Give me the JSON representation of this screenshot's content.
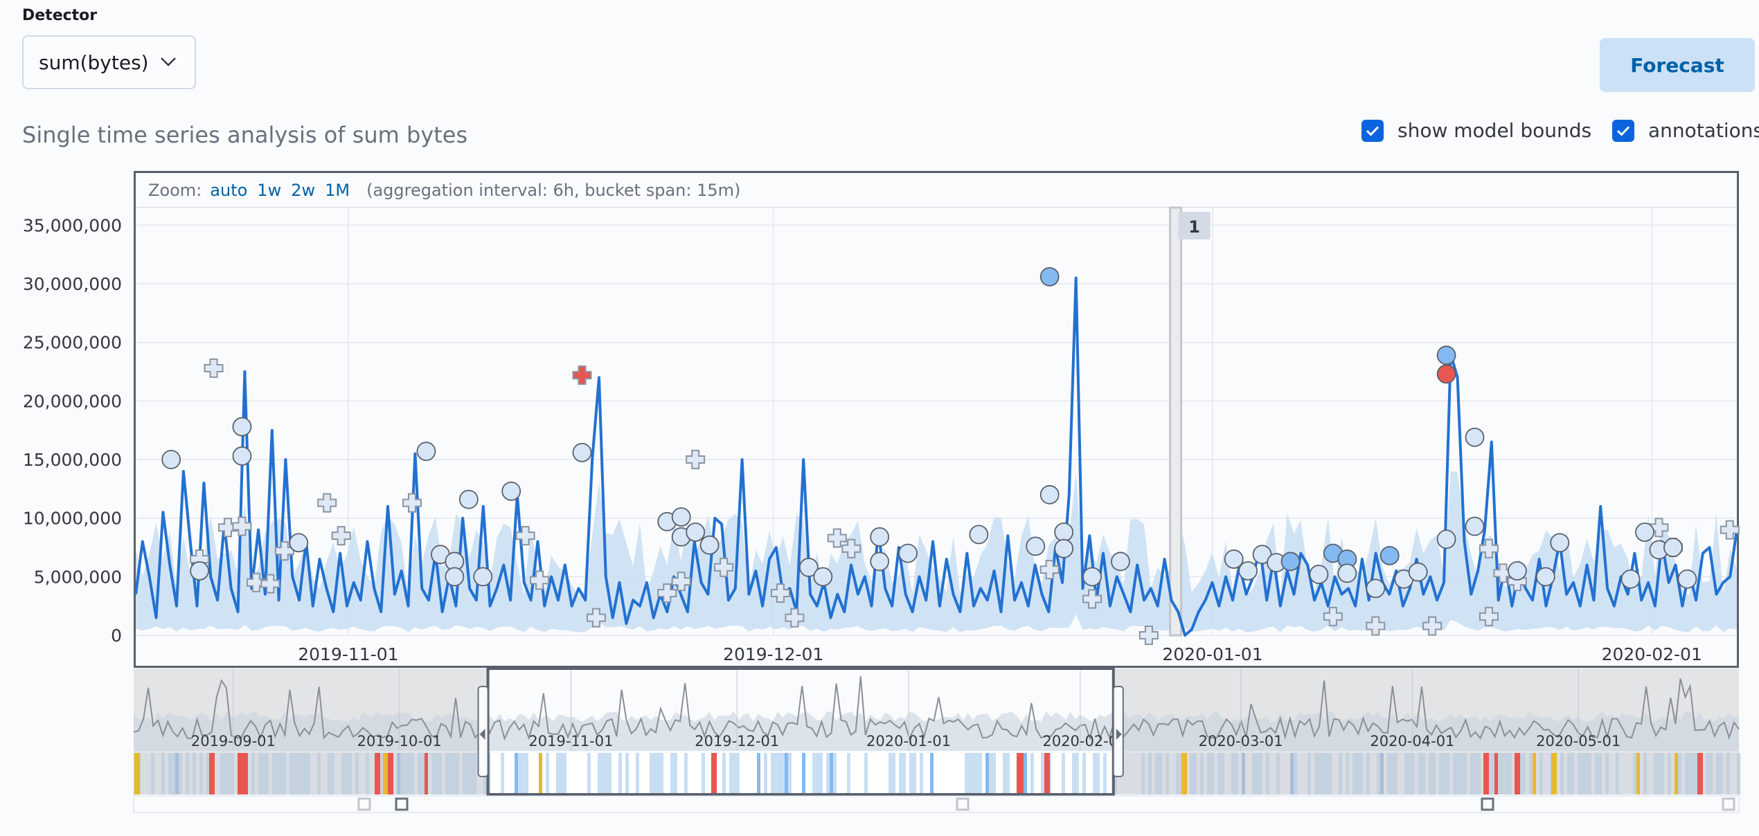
{
  "detector": {
    "label": "Detector",
    "value": "sum(bytes)"
  },
  "actions": {
    "forecast_label": "Forecast"
  },
  "page_title": "Single time series analysis of sum bytes",
  "toggles": [
    {
      "label": "show model bounds",
      "checked": true
    },
    {
      "label": "annotations",
      "checked": true
    }
  ],
  "zoom": {
    "label": "Zoom:",
    "options": [
      "auto",
      "1w",
      "2w",
      "1M"
    ],
    "info": "(aggregation interval: 6h, bucket span: 15m)"
  },
  "annotation_marker": "1",
  "colors": {
    "line": "#2271d1",
    "bounds": "#c8def3",
    "critical": "#e7574f",
    "major": "#84b9f1",
    "minor": "#d6e6f6",
    "selection_frame": "#5a606b",
    "accent": "#0061a6"
  },
  "chart_data": {
    "type": "line",
    "y_tick_labels": [
      "0",
      "5,000,000",
      "10,000,000",
      "15,000,000",
      "20,000,000",
      "25,000,000",
      "30,000,000",
      "35,000,000"
    ],
    "ylim": [
      0,
      36500000
    ],
    "x_tick_labels": [
      "2019-11-01",
      "2019-12-01",
      "2020-01-01",
      "2020-02-01"
    ],
    "x_range": [
      "2019-10-17",
      "2020-02-07"
    ],
    "series": [
      {
        "values": [
          3500000,
          8000000,
          5000000,
          1500000,
          10500000,
          6000000,
          2500000,
          14000000,
          8000000,
          2500000,
          13000000,
          5000000,
          3000000,
          9500000,
          4000000,
          2000000,
          22500000,
          4000000,
          9000000,
          3500000,
          17500000,
          3000000,
          15000000,
          5000000,
          3000000,
          8000000,
          2500000,
          6500000,
          4000000,
          2000000,
          7000000,
          2500000,
          4500000,
          3000000,
          8000000,
          4000000,
          2000000,
          11000000,
          3500000,
          5500000,
          2500000,
          15500000,
          4000000,
          3000000,
          7000000,
          2000000,
          5000000,
          2500000,
          10000000,
          4000000,
          3000000,
          11000000,
          2500000,
          4000000,
          6000000,
          3000000,
          12000000,
          4500000,
          3000000,
          8000000,
          2500000,
          5000000,
          3000000,
          6000000,
          2500000,
          4000000,
          3000000,
          15000000,
          22000000,
          5000000,
          1500000,
          4500000,
          1000000,
          3000000,
          2500000,
          4500000,
          1500000,
          3500000,
          2000000,
          5000000,
          3500000,
          2000000,
          8000000,
          4500000,
          3500000,
          10000000,
          9500000,
          3000000,
          4000000,
          15000000,
          3500000,
          5500000,
          2500000,
          6500000,
          7500000,
          3500000,
          4000000,
          2000000,
          15000000,
          3500000,
          2500000,
          4500000,
          1500000,
          3500000,
          2000000,
          6000000,
          3500000,
          5000000,
          2500000,
          9000000,
          4000000,
          2500000,
          7500000,
          3500000,
          2000000,
          5000000,
          3000000,
          8000000,
          2500000,
          6500000,
          3500000,
          2000000,
          7000000,
          2500000,
          4000000,
          3000000,
          5500000,
          2000000,
          8500000,
          3000000,
          4500000,
          2500000,
          6000000,
          3500000,
          2000000,
          7500000,
          4500000,
          12000000,
          30500000,
          4000000,
          8500000,
          3000000,
          7000000,
          2500000,
          5000000,
          3500000,
          2000000,
          6000000,
          3000000,
          4000000,
          2500000,
          6500000,
          3000000,
          2000000,
          0,
          500000,
          2000000,
          3000000,
          4500000,
          2500000,
          5000000,
          3000000,
          6000000,
          3500000,
          5000000,
          7500000,
          3000000,
          6500000,
          2500000,
          5500000,
          3500000,
          7000000,
          6000000,
          3000000,
          4500000,
          2500000,
          5000000,
          3500000,
          4000000,
          2500000,
          6500000,
          3000000,
          7000000,
          4500000,
          3500000,
          5500000,
          2500000,
          4000000,
          6500000,
          3500000,
          5000000,
          3000000,
          4500000,
          24000000,
          22000000,
          8000000,
          3500000,
          5500000,
          9000000,
          16500000,
          3000000,
          6000000,
          2500000,
          5500000,
          4000000,
          3000000,
          6500000,
          2500000,
          5000000,
          8000000,
          3500000,
          4500000,
          2500000,
          6000000,
          3000000,
          11000000,
          4000000,
          2500000,
          5000000,
          3500000,
          7000000,
          3000000,
          4500000,
          2500000,
          8000000,
          4500000,
          6000000,
          2500000,
          5500000,
          3000000,
          7000000,
          7500000,
          3500000,
          4500000,
          5000000,
          9000000
        ]
      }
    ],
    "model_bounds_upper_typical": 9500000,
    "anomalies": [
      {
        "date": "2019-10-19",
        "value": 15000000,
        "severity": "minor"
      },
      {
        "date": "2019-10-21",
        "value": 5500000,
        "severity": "minor"
      },
      {
        "date": "2019-10-24",
        "value": 17800000,
        "severity": "minor"
      },
      {
        "date": "2019-10-24",
        "value": 15300000,
        "severity": "minor"
      },
      {
        "date": "2019-10-28",
        "value": 7900000,
        "severity": "minor"
      },
      {
        "date": "2019-11-06",
        "value": 15700000,
        "severity": "minor"
      },
      {
        "date": "2019-11-07",
        "value": 6900000,
        "severity": "minor"
      },
      {
        "date": "2019-11-08",
        "value": 6300000,
        "severity": "minor"
      },
      {
        "date": "2019-11-08",
        "value": 5000000,
        "severity": "minor"
      },
      {
        "date": "2019-11-09",
        "value": 11600000,
        "severity": "minor"
      },
      {
        "date": "2019-11-10",
        "value": 5000000,
        "severity": "minor"
      },
      {
        "date": "2019-11-12",
        "value": 12300000,
        "severity": "minor"
      },
      {
        "date": "2019-11-17",
        "value": 15600000,
        "severity": "minor"
      },
      {
        "date": "2019-11-17",
        "value": 22200000,
        "severity": "critical"
      },
      {
        "date": "2019-11-23",
        "value": 9700000,
        "severity": "minor"
      },
      {
        "date": "2019-11-24",
        "value": 8400000,
        "severity": "minor"
      },
      {
        "date": "2019-11-24",
        "value": 10100000,
        "severity": "minor"
      },
      {
        "date": "2019-11-25",
        "value": 8800000,
        "severity": "minor"
      },
      {
        "date": "2019-11-26",
        "value": 7700000,
        "severity": "minor"
      },
      {
        "date": "2019-12-03",
        "value": 5800000,
        "severity": "minor"
      },
      {
        "date": "2019-12-04",
        "value": 5000000,
        "severity": "minor"
      },
      {
        "date": "2019-12-08",
        "value": 8400000,
        "severity": "minor"
      },
      {
        "date": "2019-12-08",
        "value": 6300000,
        "severity": "minor"
      },
      {
        "date": "2019-12-10",
        "value": 7000000,
        "severity": "minor"
      },
      {
        "date": "2019-12-15",
        "value": 8600000,
        "severity": "minor"
      },
      {
        "date": "2019-12-19",
        "value": 7600000,
        "severity": "minor"
      },
      {
        "date": "2019-12-20",
        "value": 12000000,
        "severity": "minor"
      },
      {
        "date": "2019-12-20",
        "value": 30600000,
        "severity": "major"
      },
      {
        "date": "2019-12-21",
        "value": 8800000,
        "severity": "minor"
      },
      {
        "date": "2019-12-21",
        "value": 7400000,
        "severity": "minor"
      },
      {
        "date": "2019-12-23",
        "value": 5000000,
        "severity": "minor"
      },
      {
        "date": "2019-12-25",
        "value": 6300000,
        "severity": "minor"
      },
      {
        "date": "2020-01-02",
        "value": 6500000,
        "severity": "minor"
      },
      {
        "date": "2020-01-03",
        "value": 5500000,
        "severity": "minor"
      },
      {
        "date": "2020-01-04",
        "value": 6900000,
        "severity": "minor"
      },
      {
        "date": "2020-01-05",
        "value": 6200000,
        "severity": "minor"
      },
      {
        "date": "2020-01-06",
        "value": 6300000,
        "severity": "major"
      },
      {
        "date": "2020-01-08",
        "value": 5200000,
        "severity": "minor"
      },
      {
        "date": "2020-01-09",
        "value": 7000000,
        "severity": "major"
      },
      {
        "date": "2020-01-10",
        "value": 6500000,
        "severity": "major"
      },
      {
        "date": "2020-01-10",
        "value": 5300000,
        "severity": "minor"
      },
      {
        "date": "2020-01-12",
        "value": 4000000,
        "severity": "minor"
      },
      {
        "date": "2020-01-13",
        "value": 6800000,
        "severity": "major"
      },
      {
        "date": "2020-01-14",
        "value": 4800000,
        "severity": "minor"
      },
      {
        "date": "2020-01-15",
        "value": 5400000,
        "severity": "minor"
      },
      {
        "date": "2020-01-17",
        "value": 23900000,
        "severity": "major"
      },
      {
        "date": "2020-01-17",
        "value": 22300000,
        "severity": "critical"
      },
      {
        "date": "2020-01-17",
        "value": 8200000,
        "severity": "minor"
      },
      {
        "date": "2020-01-19",
        "value": 9300000,
        "severity": "minor"
      },
      {
        "date": "2020-01-19",
        "value": 16900000,
        "severity": "minor"
      },
      {
        "date": "2020-01-22",
        "value": 5500000,
        "severity": "minor"
      },
      {
        "date": "2020-01-24",
        "value": 5000000,
        "severity": "minor"
      },
      {
        "date": "2020-01-25",
        "value": 7900000,
        "severity": "minor"
      },
      {
        "date": "2020-01-30",
        "value": 4800000,
        "severity": "minor"
      },
      {
        "date": "2020-01-31",
        "value": 8800000,
        "severity": "minor"
      },
      {
        "date": "2020-02-01",
        "value": 7300000,
        "severity": "minor"
      },
      {
        "date": "2020-02-02",
        "value": 7500000,
        "severity": "minor"
      },
      {
        "date": "2020-02-03",
        "value": 4800000,
        "severity": "minor"
      }
    ],
    "markers": [
      {
        "date": "2019-10-21",
        "value": 6500000
      },
      {
        "date": "2019-10-22",
        "value": 22800000
      },
      {
        "date": "2019-10-23",
        "value": 9200000
      },
      {
        "date": "2019-10-24",
        "value": 9300000
      },
      {
        "date": "2019-10-25",
        "value": 4500000
      },
      {
        "date": "2019-10-26",
        "value": 4400000
      },
      {
        "date": "2019-10-27",
        "value": 7200000
      },
      {
        "date": "2019-10-30",
        "value": 11300000
      },
      {
        "date": "2019-10-31",
        "value": 8500000
      },
      {
        "date": "2019-11-05",
        "value": 11300000
      },
      {
        "date": "2019-11-13",
        "value": 8500000
      },
      {
        "date": "2019-11-14",
        "value": 4700000
      },
      {
        "date": "2019-11-18",
        "value": 1500000
      },
      {
        "date": "2019-11-23",
        "value": 3600000
      },
      {
        "date": "2019-11-24",
        "value": 4600000
      },
      {
        "date": "2019-11-25",
        "value": 15000000
      },
      {
        "date": "2019-11-27",
        "value": 5800000
      },
      {
        "date": "2019-12-01",
        "value": 3600000
      },
      {
        "date": "2019-12-02",
        "value": 1500000
      },
      {
        "date": "2019-12-05",
        "value": 8300000
      },
      {
        "date": "2019-12-06",
        "value": 7400000
      },
      {
        "date": "2019-12-20",
        "value": 5600000
      },
      {
        "date": "2019-12-23",
        "value": 3100000
      },
      {
        "date": "2019-12-27",
        "value": 0
      },
      {
        "date": "2020-01-09",
        "value": 1600000
      },
      {
        "date": "2020-01-12",
        "value": 800000
      },
      {
        "date": "2020-01-16",
        "value": 800000
      },
      {
        "date": "2020-01-20",
        "value": 7400000
      },
      {
        "date": "2020-01-21",
        "value": 5300000
      },
      {
        "date": "2020-01-20",
        "value": 1600000
      },
      {
        "date": "2020-01-22",
        "value": 4600000
      },
      {
        "date": "2020-02-01",
        "value": 9200000
      },
      {
        "date": "2020-02-02",
        "value": 7500000
      },
      {
        "date": "2020-02-06",
        "value": 9000000
      }
    ],
    "annotation": {
      "start": "2019-12-29",
      "end": "2019-12-30",
      "label": "1"
    }
  },
  "context_chart": {
    "x_tick_labels": [
      "2019-09-01",
      "2019-10-01",
      "2019-11-01",
      "2019-12-01",
      "2020-01-01",
      "2020-02-0",
      "2020-03-01",
      "2020-04-01",
      "2020-05-01"
    ],
    "selection": [
      "2019-10-17",
      "2020-02-07"
    ]
  }
}
